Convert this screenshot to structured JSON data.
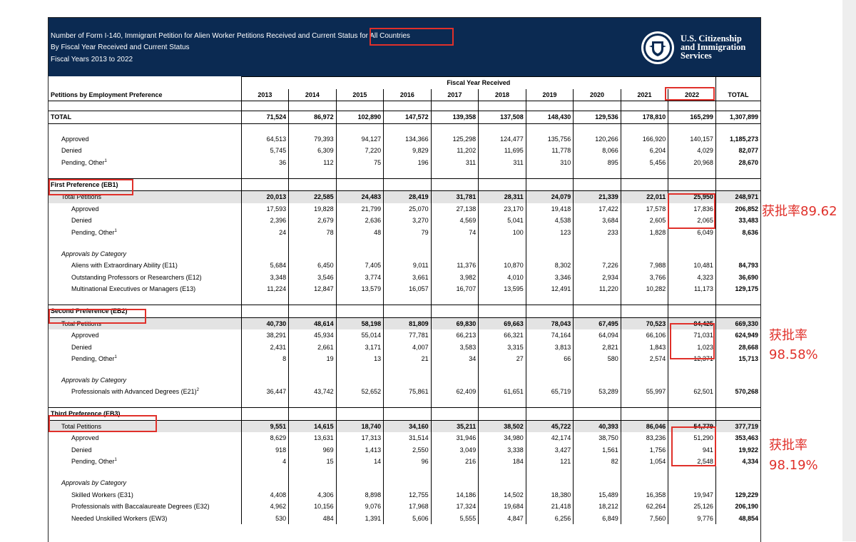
{
  "banner": {
    "line1": "Number of Form I-140, Immigrant Petition for Alien Worker Petitions Received and Current Status for All Countries",
    "line2": "By Fiscal Year Received and Current Status",
    "line3": "Fiscal Years 2013 to 2022",
    "agency": [
      "U.S. Citizenship",
      "and Immigration",
      "Services"
    ]
  },
  "header": {
    "group_label": "Fiscal Year Received",
    "row_label": "Petitions by Employment Preference",
    "years": [
      "2013",
      "2014",
      "2015",
      "2016",
      "2017",
      "2018",
      "2019",
      "2020",
      "2021",
      "2022"
    ],
    "total_label": "TOTAL"
  },
  "rows": [
    {
      "kind": "blank"
    },
    {
      "kind": "total",
      "label": "TOTAL",
      "values": [
        "71,524",
        "86,972",
        "102,890",
        "147,572",
        "139,358",
        "137,508",
        "148,430",
        "129,536",
        "178,810",
        "165,299"
      ],
      "total": "1,307,899"
    },
    {
      "kind": "blank"
    },
    {
      "kind": "data",
      "indent": 1,
      "label": "Approved",
      "values": [
        "64,513",
        "79,393",
        "94,127",
        "134,366",
        "125,298",
        "124,477",
        "135,756",
        "120,266",
        "166,920",
        "140,157"
      ],
      "total": "1,185,273"
    },
    {
      "kind": "data",
      "indent": 1,
      "label": "Denied",
      "values": [
        "5,745",
        "6,309",
        "7,220",
        "9,829",
        "11,202",
        "11,695",
        "11,778",
        "8,066",
        "6,204",
        "4,029"
      ],
      "total": "82,077"
    },
    {
      "kind": "data",
      "indent": 1,
      "label": "Pending, Other",
      "sup": "1",
      "values": [
        "36",
        "112",
        "75",
        "196",
        "311",
        "311",
        "310",
        "895",
        "5,456",
        "20,968"
      ],
      "total": "28,670"
    },
    {
      "kind": "blank"
    },
    {
      "kind": "section",
      "label": "First Preference (EB1)"
    },
    {
      "kind": "sub",
      "label": "Total Petitions",
      "values": [
        "20,013",
        "22,585",
        "24,483",
        "28,419",
        "31,781",
        "28,311",
        "24,079",
        "21,339",
        "22,011",
        "25,950"
      ],
      "total": "248,971"
    },
    {
      "kind": "data",
      "indent": 2,
      "label": "Approved",
      "values": [
        "17,593",
        "19,828",
        "21,799",
        "25,070",
        "27,138",
        "23,170",
        "19,418",
        "17,422",
        "17,578",
        "17,836"
      ],
      "total": "206,852"
    },
    {
      "kind": "data",
      "indent": 2,
      "label": "Denied",
      "values": [
        "2,396",
        "2,679",
        "2,636",
        "3,270",
        "4,569",
        "5,041",
        "4,538",
        "3,684",
        "2,605",
        "2,065"
      ],
      "total": "33,483"
    },
    {
      "kind": "data",
      "indent": 2,
      "label": "Pending, Other",
      "sup": "1",
      "values": [
        "24",
        "78",
        "48",
        "79",
        "74",
        "100",
        "123",
        "233",
        "1,828",
        "6,049"
      ],
      "total": "8,636"
    },
    {
      "kind": "blank"
    },
    {
      "kind": "cat",
      "label": "Approvals by Category"
    },
    {
      "kind": "data",
      "indent": 2,
      "label": "Aliens with Extraordinary Ability (E11)",
      "values": [
        "5,684",
        "6,450",
        "7,405",
        "9,011",
        "11,376",
        "10,870",
        "8,302",
        "7,226",
        "7,988",
        "10,481"
      ],
      "total": "84,793"
    },
    {
      "kind": "data",
      "indent": 2,
      "label": "Outstanding Professors or Researchers (E12)",
      "values": [
        "3,348",
        "3,546",
        "3,774",
        "3,661",
        "3,982",
        "4,010",
        "3,346",
        "2,934",
        "3,766",
        "4,323"
      ],
      "total": "36,690"
    },
    {
      "kind": "data",
      "indent": 2,
      "label": "Multinational Executives or Managers (E13)",
      "values": [
        "11,224",
        "12,847",
        "13,579",
        "16,057",
        "16,707",
        "13,595",
        "12,491",
        "11,220",
        "10,282",
        "11,173"
      ],
      "total": "129,175"
    },
    {
      "kind": "blank"
    },
    {
      "kind": "section",
      "label": "Second Preference (EB2)"
    },
    {
      "kind": "sub",
      "label": "Total Petitions",
      "values": [
        "40,730",
        "48,614",
        "58,198",
        "81,809",
        "69,830",
        "69,663",
        "78,043",
        "67,495",
        "70,523",
        "84,425"
      ],
      "total": "669,330"
    },
    {
      "kind": "data",
      "indent": 2,
      "label": "Approved",
      "values": [
        "38,291",
        "45,934",
        "55,014",
        "77,781",
        "66,213",
        "66,321",
        "74,164",
        "64,094",
        "66,106",
        "71,031"
      ],
      "total": "624,949"
    },
    {
      "kind": "data",
      "indent": 2,
      "label": "Denied",
      "values": [
        "2,431",
        "2,661",
        "3,171",
        "4,007",
        "3,583",
        "3,315",
        "3,813",
        "2,821",
        "1,843",
        "1,023"
      ],
      "total": "28,668"
    },
    {
      "kind": "data",
      "indent": 2,
      "label": "Pending, Other",
      "sup": "1",
      "values": [
        "8",
        "19",
        "13",
        "21",
        "34",
        "27",
        "66",
        "580",
        "2,574",
        "12,371"
      ],
      "total": "15,713"
    },
    {
      "kind": "blank"
    },
    {
      "kind": "cat",
      "label": "Approvals by Category"
    },
    {
      "kind": "data",
      "indent": 2,
      "label": "Professionals with Advanced Degrees (E21)",
      "sup": "2",
      "values": [
        "36,447",
        "43,742",
        "52,652",
        "75,861",
        "62,409",
        "61,651",
        "65,719",
        "53,289",
        "55,997",
        "62,501"
      ],
      "total": "570,268"
    },
    {
      "kind": "blank"
    },
    {
      "kind": "section",
      "label": "Third Preference (EB3)"
    },
    {
      "kind": "sub",
      "label": "Total Petitions",
      "values": [
        "9,551",
        "14,615",
        "18,740",
        "34,160",
        "35,211",
        "38,502",
        "45,722",
        "40,393",
        "86,046",
        "54,779"
      ],
      "total": "377,719"
    },
    {
      "kind": "data",
      "indent": 2,
      "label": "Approved",
      "values": [
        "8,629",
        "13,631",
        "17,313",
        "31,514",
        "31,946",
        "34,980",
        "42,174",
        "38,750",
        "83,236",
        "51,290"
      ],
      "total": "353,463"
    },
    {
      "kind": "data",
      "indent": 2,
      "label": "Denied",
      "values": [
        "918",
        "969",
        "1,413",
        "2,550",
        "3,049",
        "3,338",
        "3,427",
        "1,561",
        "1,756",
        "941"
      ],
      "total": "19,922"
    },
    {
      "kind": "data",
      "indent": 2,
      "label": "Pending, Other",
      "sup": "1",
      "values": [
        "4",
        "15",
        "14",
        "96",
        "216",
        "184",
        "121",
        "82",
        "1,054",
        "2,548"
      ],
      "total": "4,334"
    },
    {
      "kind": "blank"
    },
    {
      "kind": "cat",
      "label": "Approvals by Category"
    },
    {
      "kind": "data",
      "indent": 2,
      "label": "Skilled Workers (E31)",
      "values": [
        "4,408",
        "4,306",
        "8,898",
        "12,755",
        "14,186",
        "14,502",
        "18,380",
        "15,489",
        "16,358",
        "19,947"
      ],
      "total": "129,229"
    },
    {
      "kind": "data",
      "indent": 2,
      "label": "Professionals with Baccalaureate Degrees (E32)",
      "values": [
        "4,962",
        "10,156",
        "9,076",
        "17,968",
        "17,324",
        "19,684",
        "21,418",
        "18,212",
        "62,264",
        "25,126"
      ],
      "total": "206,190"
    },
    {
      "kind": "data",
      "indent": 2,
      "label": "Needed Unskilled Workers (EW3)",
      "values": [
        "530",
        "484",
        "1,391",
        "5,606",
        "5,555",
        "4,847",
        "6,256",
        "6,849",
        "7,560",
        "9,776"
      ],
      "total": "48,854"
    }
  ],
  "annotations": {
    "eb1_note": "获批率89.62",
    "eb2_note_a": "获批率",
    "eb2_note_b": "98.58%",
    "eb3_note_a": "获批率",
    "eb3_note_b": "98.19%"
  },
  "colors": {
    "banner": "#0b2a52",
    "highlight": "#e0302a",
    "shade": "#e3e3e3"
  }
}
